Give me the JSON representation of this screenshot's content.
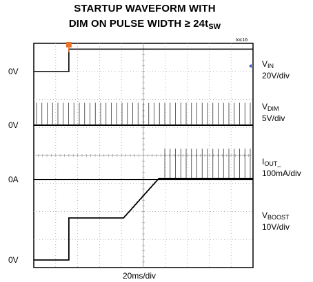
{
  "chart_data": {
    "type": "line",
    "title_line1": "STARTUP WAVEFORM WITH",
    "title_line2_main": "DIM ON PULSE WIDTH ≥ 24t",
    "title_line2_sub": "SW",
    "tag": "toc16",
    "xlabel": "20ms/div",
    "x_divisions": 10,
    "y_divisions": 8,
    "trigger_div": 1.6,
    "channels": [
      {
        "name_main": "V",
        "name_sub": "IN",
        "scale": "20V/div",
        "ref_label": "0V",
        "levels_div": {
          "low": 0,
          "high": 0.8
        }
      },
      {
        "name_main": "V",
        "name_sub": "DIM",
        "scale": "5V/div",
        "ref_label": "0V",
        "levels_div": {
          "low": 0,
          "high": 0.8
        }
      },
      {
        "name_main": "I",
        "name_sub": "OUT_",
        "scale": "100mA/div",
        "ref_label": "0A",
        "levels_div": {
          "low": 0,
          "high": 1.1
        }
      },
      {
        "name_main": "V",
        "name_sub": "BOOST",
        "scale": "10V/div",
        "ref_label": "0V",
        "levels_div": {
          "low": 0,
          "mid": 1.5,
          "high": 2.9
        }
      }
    ]
  }
}
